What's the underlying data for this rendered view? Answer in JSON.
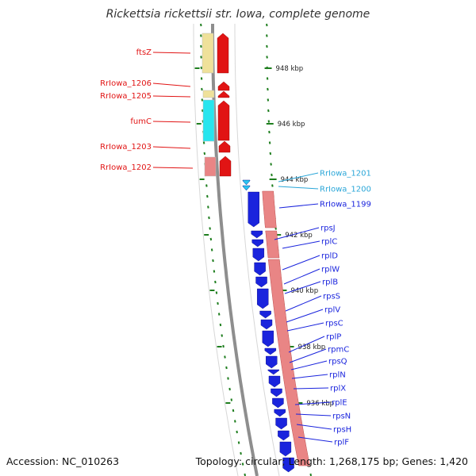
{
  "title": "Rickettsia rickettsii str. Iowa, complete genome",
  "footer": {
    "accession": "Accession: NC_010263",
    "summary": "Topology: circular; Length: 1,268,175 bp; Genes: 1,420"
  },
  "colors": {
    "cds_forward": "#e11414",
    "cds_reverse": "#1a24dd",
    "trna": "#29c4ef",
    "gene_pink": "#e98585",
    "ftsZ_fill": "#efe19a",
    "fumC_fill": "#27e5ee",
    "backbone": "#8e8e8e",
    "ticks": "#1e7e1e"
  },
  "kbp_labels": [
    "948 kbp",
    "946 kbp",
    "944 kbp",
    "942 kbp",
    "940 kbp",
    "938 kbp",
    "936 kbp"
  ],
  "left_genes": [
    "ftsZ",
    "RrIowa_1206",
    "RrIowa_1205",
    "fumC",
    "RrIowa_1203",
    "RrIowa_1202"
  ],
  "right_genes": [
    {
      "label": "RrIowa_1201",
      "color": "#2aa6d8"
    },
    {
      "label": "RrIowa_1200",
      "color": "#2aa6d8"
    },
    {
      "label": "RrIowa_1199",
      "color": "#1a24dd"
    },
    {
      "label": "rpsJ",
      "color": "#1a24dd"
    },
    {
      "label": "rplC",
      "color": "#1a24dd"
    },
    {
      "label": "rplD",
      "color": "#1a24dd"
    },
    {
      "label": "rplW",
      "color": "#1a24dd"
    },
    {
      "label": "rplB",
      "color": "#1a24dd"
    },
    {
      "label": "rpsS",
      "color": "#1a24dd"
    },
    {
      "label": "rplV",
      "color": "#1a24dd"
    },
    {
      "label": "rpsC",
      "color": "#1a24dd"
    },
    {
      "label": "rplP",
      "color": "#1a24dd"
    },
    {
      "label": "rpmC",
      "color": "#1a24dd"
    },
    {
      "label": "rpsQ",
      "color": "#1a24dd"
    },
    {
      "label": "rplN",
      "color": "#1a24dd"
    },
    {
      "label": "rplX",
      "color": "#1a24dd"
    },
    {
      "label": "rplE",
      "color": "#1a24dd"
    },
    {
      "label": "rpsN",
      "color": "#1a24dd"
    },
    {
      "label": "rpsH",
      "color": "#1a24dd"
    },
    {
      "label": "rplF",
      "color": "#1a24dd"
    }
  ]
}
